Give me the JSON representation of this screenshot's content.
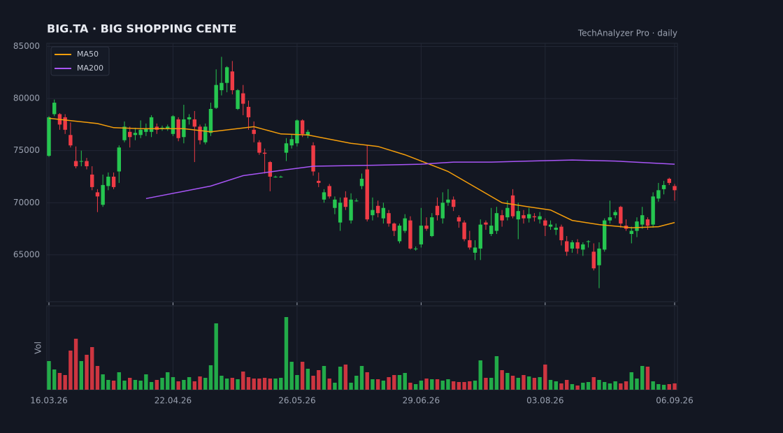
{
  "chart_data": {
    "type": "candlestick",
    "title": "BIG.TA  ·  BIG SHOPPING CENTE",
    "subtitle": "TechAnalyzer Pro · daily",
    "volume_label": "Vol",
    "up_color": "#26c650",
    "down_color": "#ef3b45",
    "xlim": [
      0,
      116
    ],
    "xticks": [
      {
        "value": 0,
        "label": "16.03.26"
      },
      {
        "value": 23,
        "label": "22.04.26"
      },
      {
        "value": 46,
        "label": "26.05.26"
      },
      {
        "value": 69,
        "label": "29.06.26"
      },
      {
        "value": 92,
        "label": "03.08.26"
      },
      {
        "value": 116,
        "label": "06.09.26"
      }
    ],
    "ylim": [
      60500,
      85300
    ],
    "yticks": [
      65000,
      70000,
      75000,
      80000,
      85000
    ],
    "volume_lim": [
      0,
      110
    ],
    "grid": true,
    "legend": "upper left",
    "open": [
      74500,
      78500,
      78500,
      78200,
      76500,
      74000,
      74000,
      74000,
      72700,
      71000,
      69800,
      71600,
      72500,
      73000,
      76000,
      76800,
      76500,
      76500,
      76800,
      76800,
      77300,
      77200,
      77100,
      76600,
      78000,
      76300,
      78000,
      78000,
      77300,
      75800,
      76700,
      79100,
      80800,
      81500,
      82600,
      79000,
      80500,
      79200,
      77000,
      75800,
      74800,
      73900,
      72500,
      72500,
      74800,
      75500,
      75700,
      77900,
      76500,
      75500,
      72100,
      70300,
      71600,
      69500,
      68100,
      70500,
      68300,
      70200,
      71600,
      73200,
      68800,
      69700,
      68500,
      69000,
      68000,
      66300,
      67300,
      68300,
      65600,
      66000,
      67800,
      66800,
      69700,
      68500,
      70000,
      70300,
      68600,
      68100,
      66400,
      65200,
      65600,
      68100,
      67000,
      67300,
      68800,
      68600,
      70700,
      68400,
      68800,
      68500,
      68700,
      68400,
      68300,
      67700,
      67400,
      67700,
      66300,
      65600,
      66200,
      65500,
      66300,
      65300,
      64000,
      65500,
      68300,
      68800,
      69600,
      67800,
      67000,
      67300,
      67900,
      68400,
      67900,
      70400,
      71300,
      72300,
      71600
    ],
    "close": [
      78200,
      79600,
      77500,
      77000,
      75500,
      73500,
      74000,
      73500,
      71500,
      70600,
      71700,
      72500,
      71500,
      75300,
      77300,
      76300,
      76700,
      77000,
      77100,
      78200,
      77000,
      77200,
      77300,
      78300,
      76200,
      78000,
      78200,
      77300,
      76000,
      77300,
      79000,
      81300,
      81500,
      83000,
      80800,
      80800,
      79500,
      78200,
      76600,
      74800,
      74700,
      72500,
      72500,
      72500,
      75700,
      76100,
      77900,
      76600,
      76800,
      73000,
      71900,
      71000,
      70600,
      70300,
      70000,
      69600,
      70300,
      70200,
      72300,
      68400,
      69300,
      69000,
      69500,
      68000,
      67300,
      67800,
      68500,
      65600,
      65600,
      67800,
      67500,
      68600,
      68800,
      70000,
      70300,
      69600,
      68200,
      66500,
      65700,
      65700,
      67900,
      67900,
      67800,
      69000,
      68300,
      69500,
      68700,
      69200,
      68500,
      68900,
      68600,
      68700,
      67800,
      67900,
      67600,
      66400,
      65300,
      66200,
      65600,
      66000,
      66300,
      63700,
      65600,
      68300,
      68600,
      69100,
      68000,
      67500,
      67300,
      68200,
      68800,
      67800,
      70600,
      71200,
      71700,
      71900,
      71200
    ],
    "high": [
      78300,
      79900,
      78600,
      78500,
      77700,
      75400,
      75000,
      74300,
      73500,
      71300,
      72700,
      72900,
      72900,
      75500,
      77800,
      77300,
      77200,
      77900,
      77600,
      78400,
      77600,
      77400,
      77500,
      78400,
      78200,
      79400,
      78500,
      78800,
      77500,
      77600,
      79600,
      82800,
      84000,
      83100,
      83600,
      80900,
      81300,
      79800,
      77800,
      76000,
      75200,
      74000,
      72600,
      72600,
      76200,
      76600,
      78000,
      78000,
      77000,
      75800,
      72900,
      71300,
      71800,
      70600,
      70500,
      71100,
      70900,
      70400,
      72800,
      75500,
      70500,
      70200,
      70000,
      69300,
      68100,
      68000,
      68900,
      68700,
      65800,
      69500,
      68600,
      69000,
      70500,
      71000,
      71300,
      70600,
      68800,
      68300,
      67300,
      66400,
      68400,
      68300,
      69500,
      69600,
      69300,
      70200,
      71300,
      70000,
      69300,
      69500,
      69000,
      69100,
      68500,
      68300,
      68000,
      67900,
      66800,
      66400,
      66500,
      66200,
      66400,
      66100,
      66200,
      68500,
      70200,
      69300,
      69700,
      68400,
      67700,
      68600,
      69600,
      68600,
      71000,
      71900,
      72100,
      72400,
      71800
    ],
    "low": [
      74400,
      78300,
      77000,
      76600,
      75300,
      73300,
      73500,
      73200,
      71200,
      69100,
      69600,
      71200,
      71300,
      71900,
      75800,
      75300,
      76000,
      76200,
      76400,
      76300,
      76600,
      76900,
      76900,
      76400,
      75900,
      75700,
      77500,
      73900,
      75600,
      75600,
      76400,
      79000,
      80300,
      80600,
      80400,
      78900,
      78400,
      77000,
      75800,
      74600,
      72800,
      71100,
      72400,
      72400,
      74000,
      75200,
      75400,
      76300,
      76200,
      72600,
      71500,
      70000,
      70400,
      68900,
      67300,
      69300,
      68000,
      70100,
      71300,
      68200,
      68300,
      68600,
      68000,
      67700,
      66800,
      66100,
      67100,
      65500,
      65400,
      65700,
      67300,
      66700,
      68300,
      68000,
      69700,
      69200,
      67600,
      66300,
      65500,
      64500,
      64500,
      67400,
      66800,
      67000,
      67700,
      68300,
      68500,
      66500,
      68000,
      68100,
      68200,
      68000,
      66800,
      67400,
      66900,
      65900,
      64900,
      65200,
      65100,
      64900,
      65700,
      63500,
      61800,
      65300,
      68000,
      68500,
      67600,
      67300,
      66100,
      66700,
      67500,
      67400,
      67600,
      70100,
      70800,
      71700,
      70200
    ],
    "volume": [
      41,
      29,
      24,
      21,
      56,
      73,
      41,
      50,
      61,
      34,
      22,
      14,
      13,
      25,
      13,
      17,
      14,
      13,
      22,
      11,
      14,
      17,
      25,
      18,
      12,
      14,
      18,
      12,
      19,
      17,
      35,
      95,
      20,
      16,
      17,
      15,
      26,
      18,
      16,
      16,
      17,
      16,
      16,
      17,
      104,
      40,
      21,
      40,
      30,
      20,
      28,
      34,
      16,
      10,
      33,
      36,
      10,
      20,
      34,
      25,
      15,
      15,
      13,
      18,
      21,
      21,
      24,
      10,
      8,
      13,
      16,
      15,
      15,
      13,
      15,
      12,
      11,
      11,
      12,
      13,
      42,
      17,
      17,
      48,
      28,
      24,
      20,
      17,
      21,
      19,
      17,
      18,
      36,
      14,
      12,
      9,
      14,
      8,
      6,
      10,
      11,
      18,
      14,
      11,
      9,
      12,
      9,
      12,
      25,
      16,
      34,
      33,
      12,
      8,
      7,
      8,
      9
    ],
    "series": [
      {
        "name": "MA50",
        "color": "#f59e0b",
        "x": [
          0,
          9,
          12,
          17,
          25,
          30,
          38,
          43,
          48,
          56,
          61,
          66,
          69,
          74,
          79,
          84,
          89,
          93,
          97,
          102,
          108,
          113,
          116
        ],
        "values": [
          78100,
          77600,
          77200,
          77100,
          77100,
          76800,
          77300,
          76600,
          76500,
          75700,
          75400,
          74600,
          74000,
          73000,
          71500,
          70000,
          69600,
          69300,
          68300,
          67900,
          67600,
          67700,
          68100
        ]
      },
      {
        "name": "MA200",
        "color": "#a855f7",
        "x": [
          18,
          30,
          36,
          43,
          49,
          60,
          69,
          75,
          82,
          89,
          97,
          105,
          116
        ],
        "values": [
          70400,
          71600,
          72600,
          73100,
          73500,
          73600,
          73700,
          73900,
          73900,
          74000,
          74100,
          74000,
          73700
        ]
      }
    ]
  }
}
